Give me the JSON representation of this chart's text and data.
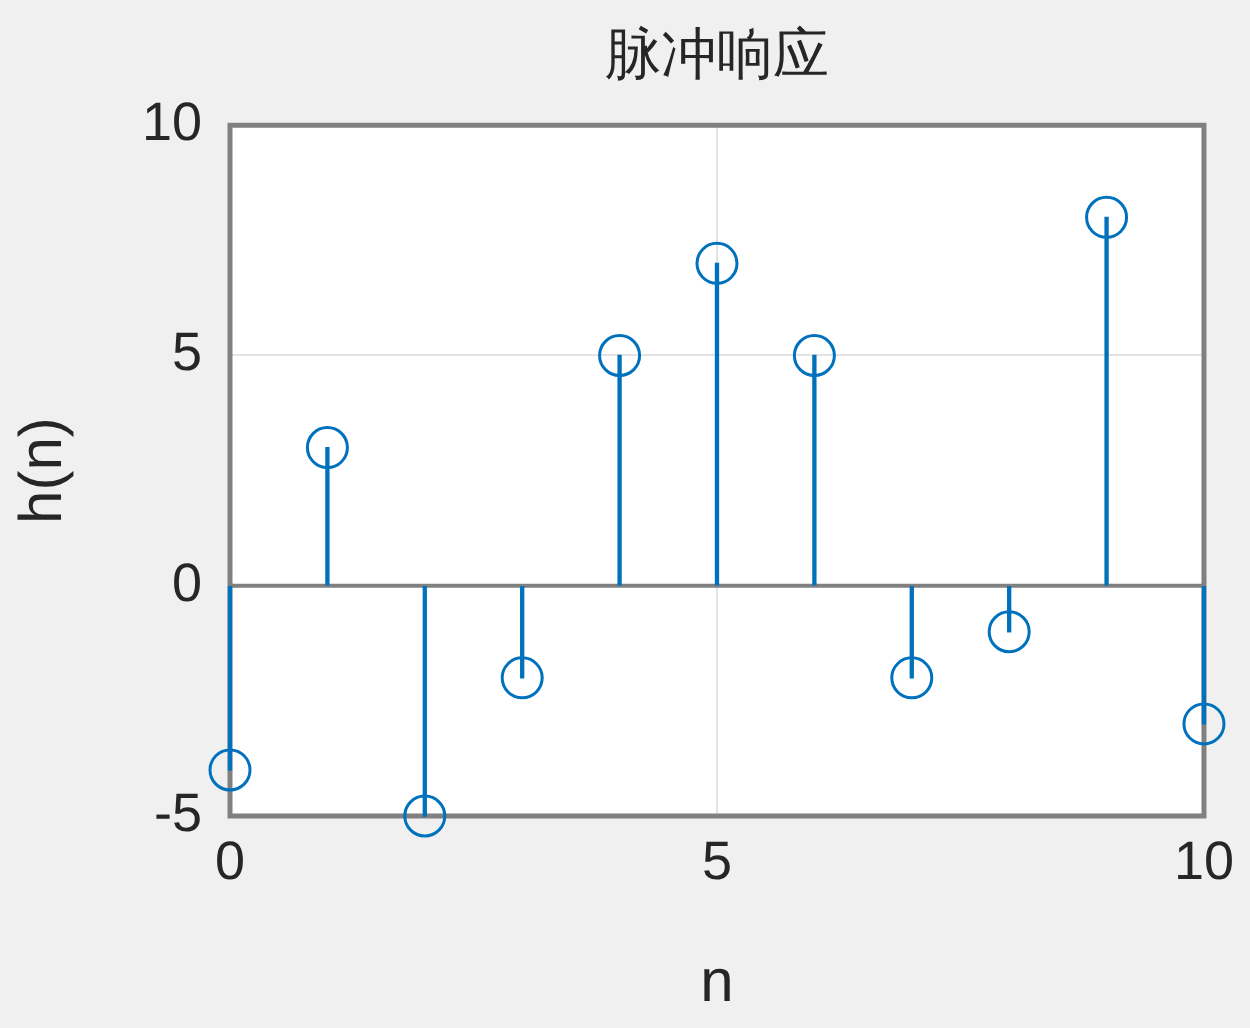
{
  "chart_data": {
    "type": "lollipop",
    "title": "脉冲响应",
    "xlabel": "n",
    "ylabel": "h(n)",
    "x": [
      0,
      1,
      2,
      3,
      4,
      5,
      6,
      7,
      8,
      9,
      10
    ],
    "values": [
      -4,
      3,
      -5,
      -2,
      5,
      7,
      5,
      -2,
      -1,
      8,
      -3
    ],
    "color": "#0072bd",
    "xlim": [
      0,
      10
    ],
    "xticks": [
      0,
      5,
      10
    ],
    "ylim": [
      -5,
      10
    ],
    "yticks": [
      -5,
      0,
      5,
      10
    ],
    "grid": true,
    "marker": "circle",
    "ref_lines": [
      {
        "axis": "y",
        "value": 0,
        "color": "#808080"
      }
    ]
  }
}
